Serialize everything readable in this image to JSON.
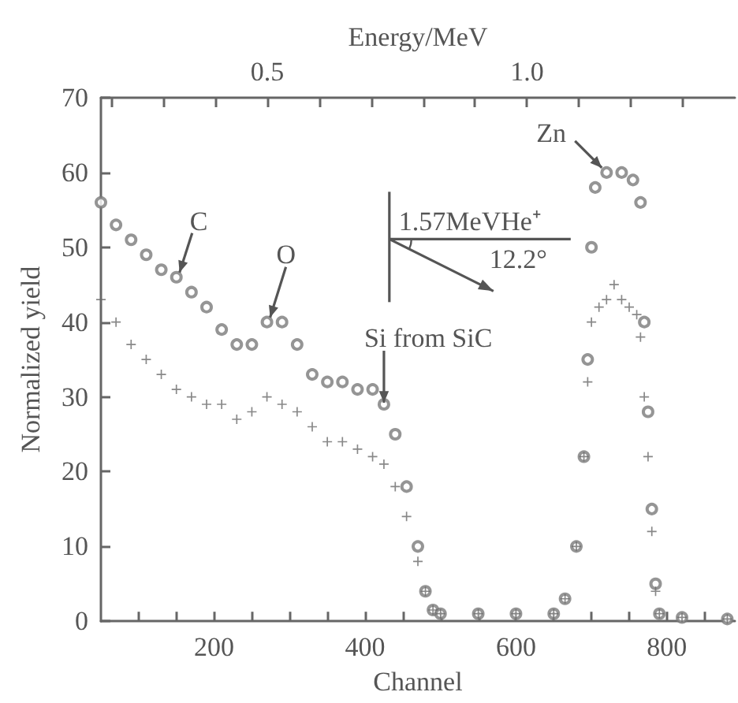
{
  "chart_data": {
    "type": "scatter",
    "xlabel": "Channel",
    "ylabel": "Normalized yield",
    "x2label": "Energy/MeV",
    "xlim": [
      50,
      890
    ],
    "xticks": [
      {
        "value": 100,
        "label": null
      },
      {
        "value": 150,
        "label": null
      },
      200,
      {
        "value": 250,
        "label": null
      },
      {
        "value": 300,
        "label": null
      },
      {
        "value": 350,
        "label": null
      },
      400,
      {
        "value": 450,
        "label": null
      },
      {
        "value": 500,
        "label": null
      },
      {
        "value": 550,
        "label": null
      },
      600,
      {
        "value": 650,
        "label": null
      },
      {
        "value": 700,
        "label": null
      },
      {
        "value": 750,
        "label": null
      },
      800,
      {
        "value": 850,
        "label": null
      }
    ],
    "x2lim": [
      0.18,
      1.4
    ],
    "x2ticks": [
      {
        "value": 0.2,
        "label": null
      },
      {
        "value": 0.3,
        "label": null
      },
      {
        "value": 0.4,
        "label": null
      },
      {
        "value": 0.5,
        "label": "0.5"
      },
      {
        "value": 0.6,
        "label": null
      },
      {
        "value": 0.7,
        "label": null
      },
      {
        "value": 0.8,
        "label": null
      },
      {
        "value": 0.9,
        "label": null
      },
      {
        "value": 1.0,
        "label": "1.0"
      },
      {
        "value": 1.1,
        "label": null
      },
      {
        "value": 1.2,
        "label": null
      },
      {
        "value": 1.3,
        "label": null
      }
    ],
    "ylim": [
      0,
      70
    ],
    "yticks": [
      0,
      10,
      20,
      30,
      40,
      50,
      60,
      70
    ],
    "grid": false,
    "series": [
      {
        "color": "#7a7a7a",
        "marker": "circle",
        "x": [
          50,
          70,
          90,
          110,
          130,
          150,
          170,
          190,
          210,
          230,
          250,
          270,
          290,
          310,
          330,
          350,
          370,
          390,
          410,
          425,
          440,
          455,
          470,
          480,
          490,
          500,
          550,
          600,
          650,
          665,
          680,
          690,
          695,
          700,
          705,
          720,
          740,
          755,
          765,
          770,
          775,
          780,
          785,
          790,
          820,
          880
        ],
        "values": [
          56,
          53,
          51,
          49,
          47,
          46,
          44,
          42,
          39,
          37,
          37,
          40,
          40,
          37,
          33,
          32,
          32,
          31,
          31,
          29,
          25,
          18,
          10,
          4,
          1.5,
          1,
          1,
          1,
          1,
          3,
          10,
          22,
          35,
          50,
          58,
          60,
          60,
          59,
          56,
          40,
          28,
          15,
          5,
          1,
          0.5,
          0.3
        ]
      },
      {
        "color": "#6a6a6a",
        "marker": "cross",
        "x": [
          50,
          70,
          90,
          110,
          130,
          150,
          170,
          190,
          210,
          230,
          250,
          270,
          290,
          310,
          330,
          350,
          370,
          390,
          410,
          425,
          440,
          455,
          470,
          480,
          490,
          500,
          550,
          600,
          650,
          665,
          680,
          690,
          695,
          700,
          710,
          720,
          730,
          740,
          750,
          760,
          765,
          770,
          775,
          780,
          785,
          790,
          820,
          880
        ],
        "values": [
          43,
          40,
          37,
          35,
          33,
          31,
          30,
          29,
          29,
          27,
          28,
          30,
          29,
          28,
          26,
          24,
          24,
          23,
          22,
          21,
          18,
          14,
          8,
          4,
          1.5,
          1,
          1,
          1,
          1,
          3,
          10,
          22,
          32,
          40,
          42,
          43,
          45,
          43,
          42,
          41,
          38,
          30,
          22,
          12,
          4,
          1,
          0.5,
          0.3
        ]
      }
    ],
    "annotations": [
      {
        "text": "C",
        "x": 150,
        "y": 46
      },
      {
        "text": "O",
        "x": 270,
        "y": 40
      },
      {
        "text": "Si from SiC",
        "x": 425,
        "y": 29
      },
      {
        "text": "Zn",
        "x": 720,
        "y": 60
      },
      "1.57MeVHe⁺",
      "12.2°"
    ]
  }
}
